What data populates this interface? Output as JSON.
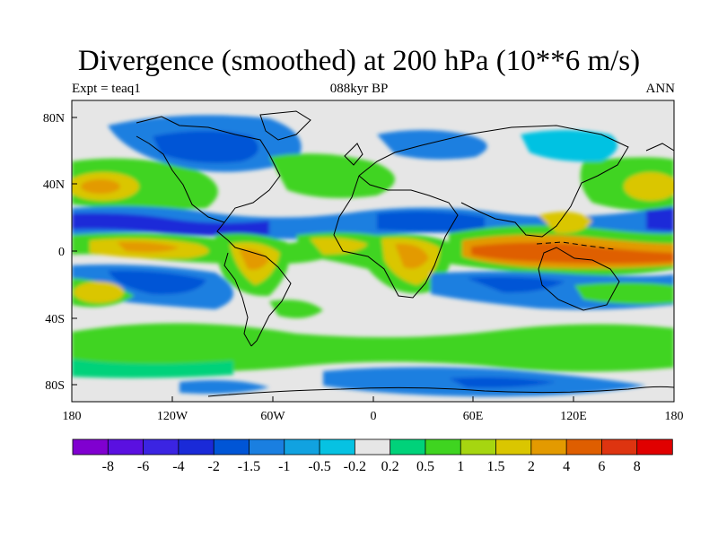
{
  "figure": {
    "title": "Divergence (smoothed) at 200 hPa (10**6 m/s)",
    "experiment": "Expt = teaq1",
    "time": "088kyr BP",
    "season": "ANN"
  },
  "axes": {
    "lon_ticks": [
      "180",
      "120W",
      "60W",
      "0",
      "60E",
      "120E",
      "180"
    ],
    "lat_ticks": [
      "80N",
      "40N",
      "0",
      "40S",
      "80S"
    ]
  },
  "colorbar": {
    "labels": [
      "-8",
      "-6",
      "-4",
      "-2",
      "-1.5",
      "-1",
      "-0.5",
      "-0.2",
      "0.2",
      "0.5",
      "1",
      "1.5",
      "2",
      "4",
      "6",
      "8"
    ],
    "colors": [
      "#8000d0",
      "#5a10e0",
      "#3b24e2",
      "#1a2ad8",
      "#0055d6",
      "#1a7fe0",
      "#11a2e0",
      "#06c2e2",
      "#e6e6e6",
      "#00d27a",
      "#3fd420",
      "#a6d610",
      "#dac600",
      "#e39a00",
      "#df5e00",
      "#de3410",
      "#e00000"
    ]
  }
}
